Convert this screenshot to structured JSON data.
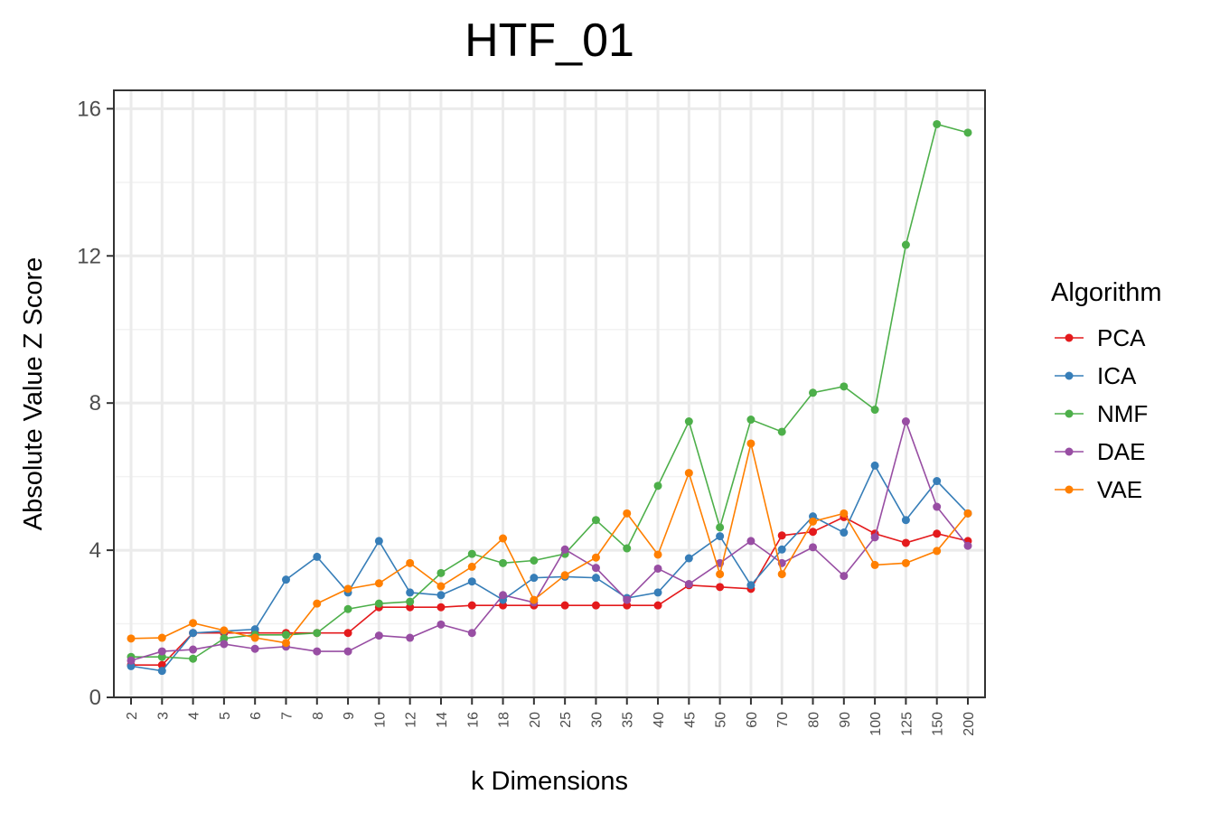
{
  "chart_data": {
    "type": "line",
    "title": "HTF_01",
    "xlabel": "k Dimensions",
    "ylabel": "Absolute Value Z Score",
    "ylim": [
      0,
      16.5
    ],
    "yticks": [
      0,
      4,
      8,
      12,
      16
    ],
    "grid": true,
    "categories": [
      "2",
      "3",
      "4",
      "5",
      "6",
      "7",
      "8",
      "9",
      "10",
      "12",
      "14",
      "16",
      "18",
      "20",
      "25",
      "30",
      "35",
      "40",
      "45",
      "50",
      "60",
      "70",
      "80",
      "90",
      "100",
      "125",
      "150",
      "200"
    ],
    "legend": {
      "title": "Algorithm",
      "position": "right"
    },
    "series": [
      {
        "name": "PCA",
        "color": "#e41a1c",
        "values": [
          0.88,
          0.88,
          1.75,
          1.75,
          1.75,
          1.75,
          1.75,
          1.75,
          2.45,
          2.45,
          2.45,
          2.5,
          2.5,
          2.5,
          2.5,
          2.5,
          2.5,
          2.5,
          3.05,
          3.0,
          2.95,
          4.4,
          4.5,
          4.9,
          4.45,
          4.2,
          4.45,
          4.25
        ]
      },
      {
        "name": "ICA",
        "color": "#377eb8",
        "values": [
          0.85,
          0.72,
          1.75,
          1.8,
          1.85,
          3.2,
          3.82,
          2.85,
          4.25,
          2.85,
          2.78,
          3.15,
          2.65,
          3.25,
          3.28,
          3.25,
          2.7,
          2.85,
          3.78,
          4.38,
          3.05,
          4.02,
          4.92,
          4.48,
          6.3,
          4.82,
          5.88,
          5.0
        ]
      },
      {
        "name": "NMF",
        "color": "#4daf4a",
        "values": [
          1.1,
          1.1,
          1.05,
          1.6,
          1.7,
          1.7,
          1.75,
          2.4,
          2.55,
          2.6,
          3.38,
          3.9,
          3.65,
          3.72,
          3.9,
          4.82,
          4.05,
          5.75,
          7.5,
          4.62,
          7.55,
          7.22,
          8.28,
          8.45,
          7.82,
          12.3,
          15.58,
          15.35
        ]
      },
      {
        "name": "DAE",
        "color": "#984ea3",
        "values": [
          1.0,
          1.25,
          1.3,
          1.45,
          1.32,
          1.38,
          1.25,
          1.25,
          1.68,
          1.62,
          1.98,
          1.75,
          2.78,
          2.58,
          4.02,
          3.52,
          2.65,
          3.5,
          3.08,
          3.65,
          4.25,
          3.65,
          4.08,
          3.3,
          4.35,
          7.5,
          5.18,
          4.12
        ]
      },
      {
        "name": "VAE",
        "color": "#ff7f00",
        "values": [
          1.6,
          1.62,
          2.02,
          1.82,
          1.62,
          1.48,
          2.55,
          2.95,
          3.1,
          3.65,
          3.02,
          3.55,
          4.32,
          2.65,
          3.32,
          3.8,
          5.0,
          3.88,
          6.1,
          3.35,
          6.9,
          3.35,
          4.78,
          5.0,
          3.6,
          3.65,
          3.98,
          5.0
        ]
      }
    ]
  }
}
